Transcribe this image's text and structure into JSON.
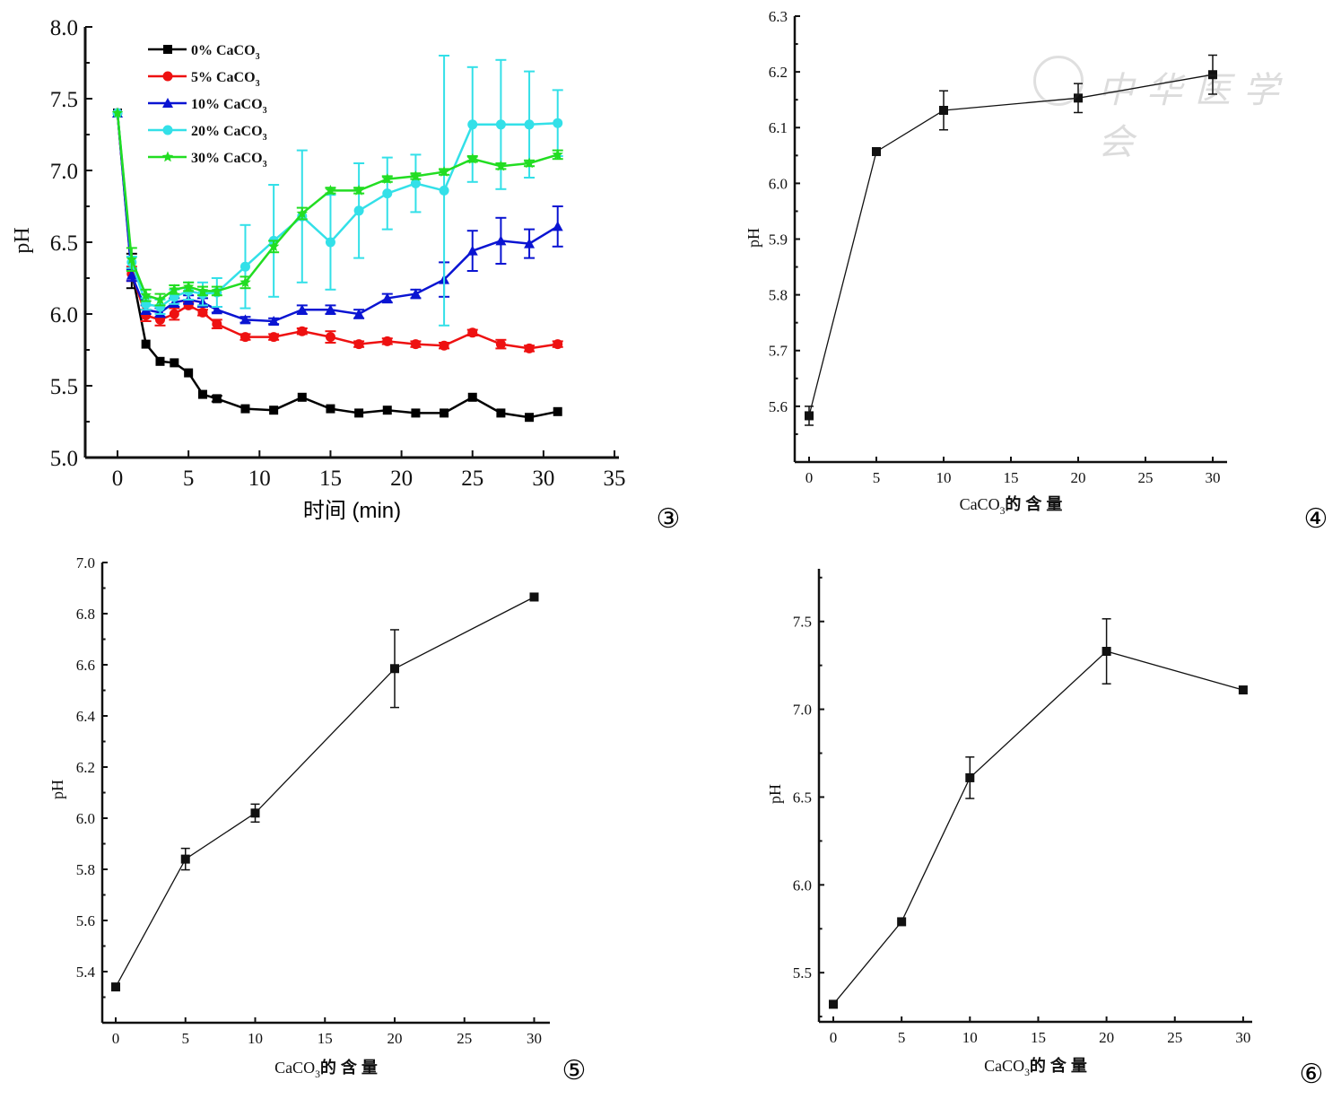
{
  "watermark": {
    "text": "中华医学会"
  },
  "chart_data": [
    {
      "id": "fig3",
      "panel_label": "③",
      "type": "line",
      "title": "",
      "xlabel": "时间 (min)",
      "ylabel": "pH",
      "xlim": [
        -2,
        35
      ],
      "ylim": [
        5.0,
        8.0
      ],
      "xticks": [
        0,
        5,
        10,
        15,
        20,
        25,
        30,
        35
      ],
      "xtick_labels": [
        "0",
        "5",
        "10",
        "15",
        "20",
        "25",
        "30",
        "35"
      ],
      "yticks": [
        5.0,
        5.5,
        6.0,
        6.5,
        7.0,
        7.5,
        8.0
      ],
      "ytick_labels": [
        "5.0",
        "5.5",
        "6.0",
        "6.5",
        "7.0",
        "7.5",
        "8.0"
      ],
      "grid": false,
      "legend_position": "top-left",
      "x": [
        0,
        1,
        2,
        3,
        4,
        5,
        6,
        7,
        9,
        11,
        13,
        15,
        17,
        19,
        21,
        23,
        25,
        27,
        29,
        31
      ],
      "series": [
        {
          "name": "0% CaCO3",
          "label_main": "0% CaCO",
          "label_sub": "3",
          "color": "#000000",
          "marker": "square",
          "values": [
            7.4,
            6.3,
            5.79,
            5.67,
            5.66,
            5.59,
            5.44,
            5.41,
            5.34,
            5.33,
            5.42,
            5.34,
            5.31,
            5.33,
            5.31,
            5.31,
            5.42,
            5.31,
            5.28,
            5.32
          ],
          "errors": [
            0,
            0.12,
            0,
            0,
            0,
            0,
            0,
            0.02,
            0,
            0,
            0,
            0,
            0,
            0,
            0,
            0,
            0,
            0,
            0,
            0
          ]
        },
        {
          "name": "5% CaCO3",
          "label_main": "5% CaCO",
          "label_sub": "3",
          "color": "#ee1111",
          "marker": "circle",
          "values": [
            7.4,
            6.28,
            5.99,
            5.96,
            6.0,
            6.06,
            6.01,
            5.93,
            5.84,
            5.84,
            5.88,
            5.84,
            5.79,
            5.81,
            5.79,
            5.78,
            5.87,
            5.79,
            5.76,
            5.79
          ],
          "errors": [
            0,
            0.05,
            0.04,
            0.04,
            0.04,
            0.02,
            0.02,
            0.03,
            0.02,
            0.02,
            0.02,
            0.04,
            0.02,
            0.02,
            0.02,
            0.02,
            0.02,
            0.03,
            0.02,
            0.02
          ]
        },
        {
          "name": "10% CaCO3",
          "label_main": "10% CaCO",
          "label_sub": "3",
          "color": "#0a14d2",
          "marker": "triangle",
          "values": [
            7.4,
            6.27,
            6.03,
            6.01,
            6.08,
            6.1,
            6.08,
            6.03,
            5.96,
            5.95,
            6.03,
            6.03,
            6.0,
            6.11,
            6.14,
            6.24,
            6.44,
            6.51,
            6.49,
            6.61
          ],
          "errors": [
            0,
            0.04,
            0.03,
            0.03,
            0.03,
            0.03,
            0.03,
            0.02,
            0.02,
            0.02,
            0.03,
            0.03,
            0.03,
            0.03,
            0.03,
            0.12,
            0.14,
            0.16,
            0.1,
            0.14
          ]
        },
        {
          "name": "20% CaCO3",
          "label_main": "20% CaCO",
          "label_sub": "3",
          "color": "#33e0e8",
          "marker": "circle",
          "values": [
            7.4,
            6.36,
            6.07,
            6.05,
            6.12,
            6.16,
            6.14,
            6.15,
            6.33,
            6.51,
            6.68,
            6.5,
            6.72,
            6.84,
            6.91,
            6.86,
            7.32,
            7.32,
            7.32,
            7.33
          ],
          "errors": [
            0,
            0.04,
            0.04,
            0.05,
            0.05,
            0.06,
            0.08,
            0.1,
            0.29,
            0.39,
            0.46,
            0.33,
            0.33,
            0.25,
            0.2,
            0.94,
            0.4,
            0.45,
            0.37,
            0.23
          ]
        },
        {
          "name": "30% CaCO3",
          "label_main": "30% CaCO",
          "label_sub": "3",
          "color": "#22dd22",
          "marker": "star",
          "values": [
            7.4,
            6.38,
            6.13,
            6.1,
            6.17,
            6.19,
            6.16,
            6.16,
            6.22,
            6.47,
            6.7,
            6.86,
            6.86,
            6.94,
            6.96,
            6.99,
            7.08,
            7.03,
            7.05,
            7.11
          ],
          "errors": [
            0,
            0.08,
            0.04,
            0.04,
            0.03,
            0.03,
            0.03,
            0.03,
            0.04,
            0.04,
            0.04,
            0.02,
            0.02,
            0.02,
            0.02,
            0.02,
            0.02,
            0.02,
            0.02,
            0.03
          ]
        }
      ]
    },
    {
      "id": "fig4",
      "panel_label": "④",
      "type": "line",
      "xlabel_main": "CaCO",
      "xlabel_sub": "3",
      "xlabel_rest": "的 含 量",
      "ylabel": "pH",
      "xlim": [
        -1,
        31
      ],
      "ylim": [
        5.5,
        6.3
      ],
      "xticks": [
        0,
        5,
        10,
        15,
        20,
        25,
        30
      ],
      "xtick_labels": [
        "0",
        "5",
        "10",
        "15",
        "20",
        "25",
        "30"
      ],
      "yticks": [
        5.6,
        5.7,
        5.8,
        5.9,
        6.0,
        6.1,
        6.2,
        6.3
      ],
      "ytick_labels": [
        "5.6",
        "5.7",
        "5.8",
        "5.9",
        "6.0",
        "6.1",
        "6.2",
        "6.3"
      ],
      "minor_yticks": [
        5.55,
        5.65,
        5.75,
        5.85,
        5.95,
        6.05,
        6.15,
        6.25
      ],
      "grid": false,
      "x": [
        0,
        5,
        10,
        20,
        30
      ],
      "values": [
        5.583,
        6.057,
        6.131,
        6.153,
        6.195
      ],
      "errors": [
        0.017,
        0,
        0.035,
        0.026,
        0.035
      ]
    },
    {
      "id": "fig5",
      "panel_label": "⑤",
      "type": "line",
      "xlabel_main": "CaCO",
      "xlabel_sub": "3",
      "xlabel_rest": "的 含 量",
      "ylabel": "pH",
      "xlim": [
        -1,
        31
      ],
      "ylim": [
        5.2,
        7.0
      ],
      "xticks": [
        0,
        5,
        10,
        15,
        20,
        25,
        30
      ],
      "xtick_labels": [
        "0",
        "5",
        "10",
        "15",
        "20",
        "25",
        "30"
      ],
      "yticks": [
        5.4,
        5.6,
        5.8,
        6.0,
        6.2,
        6.4,
        6.6,
        6.8,
        7.0
      ],
      "ytick_labels": [
        "5.4",
        "5.6",
        "5.8",
        "6.0",
        "6.2",
        "6.4",
        "6.6",
        "6.8",
        "7.0"
      ],
      "minor_yticks": [
        5.3,
        5.5,
        5.7,
        5.9,
        6.1,
        6.3,
        6.5,
        6.7,
        6.9
      ],
      "grid": false,
      "x": [
        0,
        5,
        10,
        20,
        30
      ],
      "values": [
        5.34,
        5.84,
        6.02,
        6.585,
        6.865
      ],
      "errors": [
        0,
        0.042,
        0.035,
        0.152,
        0
      ]
    },
    {
      "id": "fig6",
      "panel_label": "⑥",
      "type": "line",
      "xlabel_main": "CaCO",
      "xlabel_sub": "3",
      "xlabel_rest": "的 含 量",
      "ylabel": "pH",
      "xlim": [
        -1,
        31
      ],
      "ylim": [
        5.22,
        7.8
      ],
      "xticks": [
        0,
        5,
        10,
        15,
        20,
        25,
        30
      ],
      "xtick_labels": [
        "0",
        "5",
        "10",
        "15",
        "20",
        "25",
        "30"
      ],
      "yticks": [
        5.5,
        6.0,
        6.5,
        7.0,
        7.5
      ],
      "ytick_labels": [
        "5.5",
        "6.0",
        "6.5",
        "7.0",
        "7.5"
      ],
      "minor_yticks": [
        5.25,
        5.75,
        6.25,
        6.75,
        7.25,
        7.75
      ],
      "grid": false,
      "x": [
        0,
        5,
        10,
        20,
        30
      ],
      "values": [
        5.32,
        5.79,
        6.61,
        7.33,
        7.11
      ],
      "errors": [
        0,
        0,
        0.118,
        0.185,
        0
      ]
    }
  ]
}
